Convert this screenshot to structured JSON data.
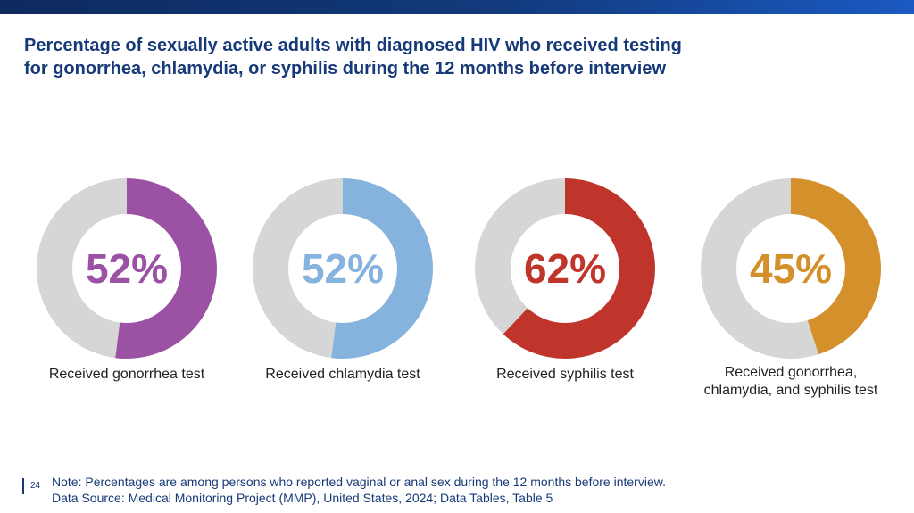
{
  "header": {
    "title_line1": "Percentage of sexually active adults with diagnosed HIV who received testing",
    "title_line2": "for gonorrhea, chlamydia, or syphilis during the 12 months before interview"
  },
  "chart_data": {
    "type": "pie",
    "charts": [
      {
        "category": "Received gonorrhea test",
        "value": 52,
        "label": "52%",
        "color": "#9b51a4",
        "caption_lines": [
          "Received gonorrhea test"
        ]
      },
      {
        "category": "Received chlamydia test",
        "value": 52,
        "label": "52%",
        "color": "#86b3de",
        "caption_lines": [
          "Received chlamydia test"
        ]
      },
      {
        "category": "Received syphilis test",
        "value": 62,
        "label": "62%",
        "color": "#c0352b",
        "caption_lines": [
          "Received syphilis test"
        ]
      },
      {
        "category": "Received gonorrhea, chlamydia, and syphilis test",
        "value": 45,
        "label": "45%",
        "color": "#d4902a",
        "caption_lines": [
          "Received gonorrhea,",
          "chlamydia, and syphilis test"
        ]
      }
    ],
    "remainder_color": "#d6d6d6"
  },
  "footer": {
    "page_number": "24",
    "note": "Note: Percentages are among persons who reported vaginal or anal sex during the 12 months before interview.",
    "source": "Data Source: Medical Monitoring Project (MMP), United States, 2024; Data Tables, Table 5"
  }
}
